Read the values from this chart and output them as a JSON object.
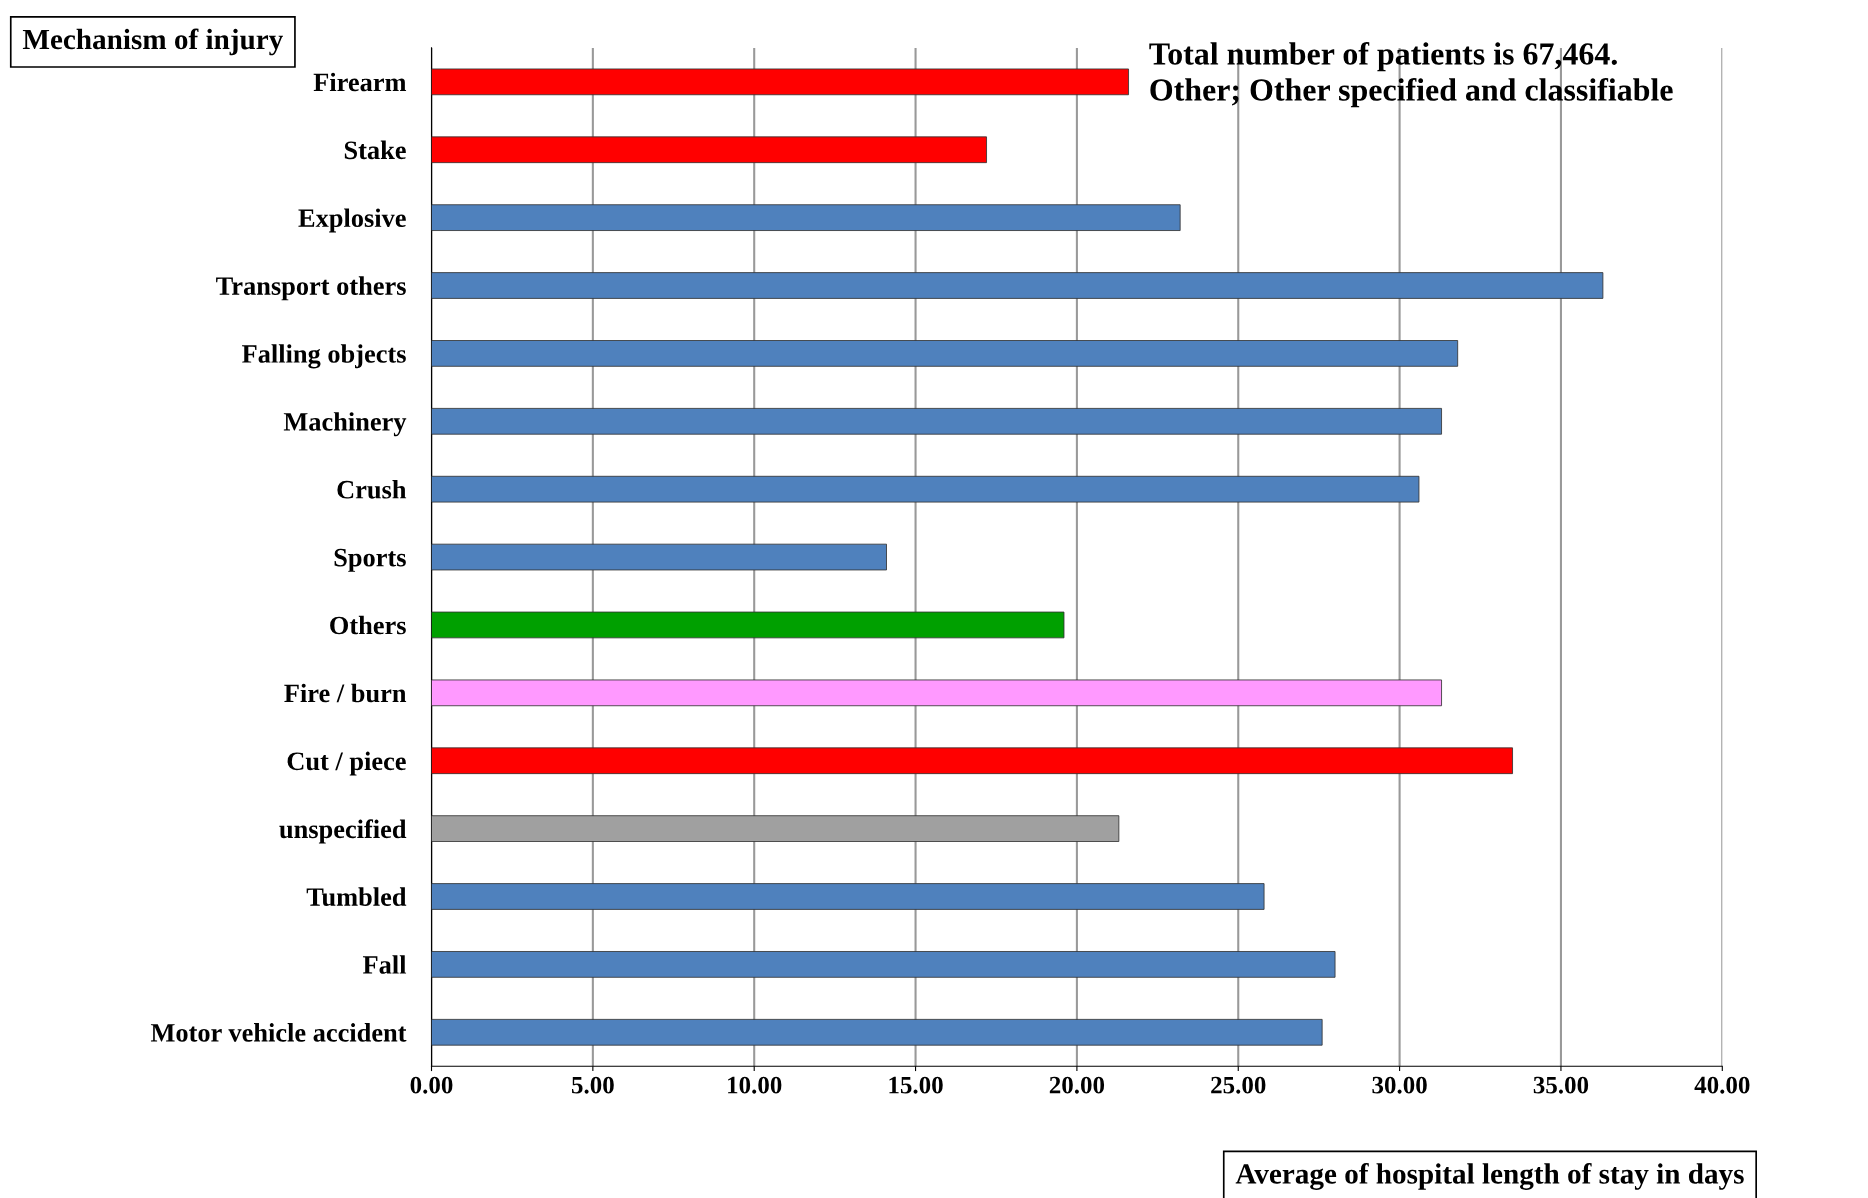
{
  "chart_data": {
    "type": "bar",
    "orientation": "horizontal",
    "ylabel": "Mechanism of injury",
    "xlabel": "Average of hospital length of stay in days",
    "annotations": [
      "Total number of patients is 67,464.\nOther; Other specified and classifiable"
    ],
    "categories": [
      "Firearm",
      "Stake",
      "Explosive",
      "Transport others",
      "Falling objects",
      "Machinery",
      "Crush",
      "Sports",
      "Others",
      "Fire / burn",
      "Cut / piece",
      "unspecified",
      "Tumbled",
      "Fall",
      "Motor vehicle accident"
    ],
    "values": [
      21.6,
      17.2,
      23.2,
      36.3,
      31.8,
      31.3,
      30.6,
      14.1,
      19.6,
      31.3,
      33.5,
      21.3,
      25.8,
      28.0,
      27.6
    ],
    "colors": [
      "#ff0000",
      "#ff0000",
      "#4f81bd",
      "#4f81bd",
      "#4f81bd",
      "#4f81bd",
      "#4f81bd",
      "#4f81bd",
      "#00a000",
      "#ff99ff",
      "#ff0000",
      "#a0a0a0",
      "#4f81bd",
      "#4f81bd",
      "#4f81bd"
    ],
    "xlim": [
      0,
      40
    ],
    "xticks": [
      {
        "value": 0,
        "label": "0.00"
      },
      {
        "value": 5,
        "label": "5.00"
      },
      {
        "value": 10,
        "label": "10.00"
      },
      {
        "value": 15,
        "label": "15.00"
      },
      {
        "value": 20,
        "label": "20.00"
      },
      {
        "value": 25,
        "label": "25.00"
      },
      {
        "value": 30,
        "label": "30.00"
      },
      {
        "value": 35,
        "label": "35.00"
      },
      {
        "value": 40,
        "label": "40.00"
      }
    ],
    "grid": "x",
    "legend": false
  }
}
